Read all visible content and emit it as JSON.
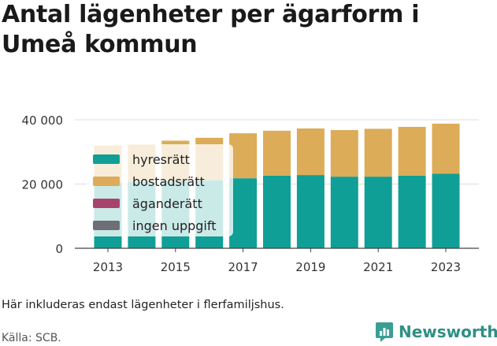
{
  "title": "Antal lägenheter per ägarform i Umeå kommun",
  "note": "Här inkluderas endast lägenheter i flerfamiljshus.",
  "source": "Källa: SCB.",
  "brand": {
    "name": "Newsworthy",
    "icon": "newsworthy-logo-icon",
    "color": "#2f8f86"
  },
  "chart_data": {
    "type": "bar",
    "stacked": true,
    "categories": [
      "2013",
      "2014",
      "2015",
      "2016",
      "2017",
      "2018",
      "2019",
      "2020",
      "2021",
      "2022",
      "2023"
    ],
    "x_tick_labels": [
      "2013",
      "2015",
      "2017",
      "2019",
      "2021",
      "2023"
    ],
    "y_ticks": [
      0,
      20000,
      40000
    ],
    "y_tick_labels": [
      "0",
      "20 000",
      "40 000"
    ],
    "ylim": [
      0,
      42000
    ],
    "grid": true,
    "legend_position": "top-left",
    "series": [
      {
        "name": "hyresrätt",
        "color": "#0f9f96",
        "values": [
          20500,
          20700,
          21000,
          21200,
          21800,
          22600,
          22800,
          22300,
          22300,
          22600,
          23200
        ]
      },
      {
        "name": "bostadsrätt",
        "color": "#dcac58",
        "values": [
          11500,
          11600,
          12500,
          13200,
          14000,
          14000,
          14500,
          14500,
          14900,
          15200,
          15600
        ]
      },
      {
        "name": "äganderätt",
        "color": "#a8446b",
        "values": [
          0,
          0,
          0,
          0,
          0,
          0,
          0,
          0,
          0,
          0,
          0
        ]
      },
      {
        "name": "ingen uppgift",
        "color": "#6e6e76",
        "values": [
          0,
          0,
          0,
          0,
          0,
          0,
          0,
          0,
          0,
          0,
          0
        ]
      }
    ]
  }
}
